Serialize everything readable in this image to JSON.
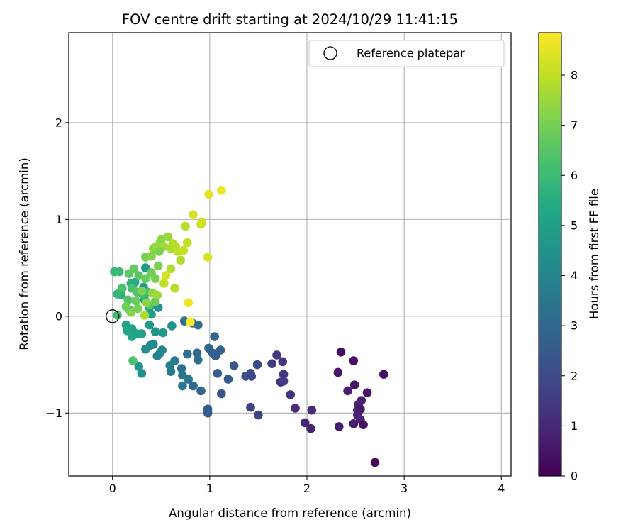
{
  "chart_data": {
    "type": "scatter",
    "title": "FOV centre drift starting at 2024/10/29 11:41:15",
    "xlabel": "Angular distance from reference (arcmin)",
    "ylabel": "Rotation from reference (arcmin)",
    "xlim": [
      -0.45,
      4.1
    ],
    "ylim": [
      -1.65,
      2.93
    ],
    "xticks": [
      0,
      1,
      2,
      3,
      4
    ],
    "yticks": [
      -1,
      0,
      1,
      2
    ],
    "grid": true,
    "legend": {
      "position": "top-right",
      "entries": [
        "Reference platepar"
      ]
    },
    "reference_point": {
      "x": 0,
      "y": 0,
      "label": "Reference platepar"
    },
    "colorbar": {
      "label": "Hours from first FF file",
      "colormap": "viridis",
      "range": [
        0,
        8.85
      ],
      "ticks": [
        0,
        1,
        2,
        3,
        4,
        5,
        6,
        7,
        8
      ]
    },
    "series": [
      {
        "points": [
          [
            2.7,
            -1.51,
            0.1
          ],
          [
            2.35,
            -0.37,
            0.3
          ],
          [
            2.48,
            -0.46,
            0.4
          ],
          [
            2.32,
            -0.58,
            0.5
          ],
          [
            2.79,
            -0.6,
            0.3
          ],
          [
            2.49,
            -0.71,
            0.6
          ],
          [
            2.42,
            -0.77,
            0.7
          ],
          [
            2.62,
            -0.79,
            0.5
          ],
          [
            2.56,
            -0.87,
            0.8
          ],
          [
            2.53,
            -0.91,
            0.9
          ],
          [
            2.52,
            -0.97,
            1.0
          ],
          [
            2.55,
            -0.96,
            0.6
          ],
          [
            2.52,
            -1.02,
            0.8
          ],
          [
            2.55,
            -1.07,
            0.9
          ],
          [
            2.33,
            -1.14,
            0.6
          ],
          [
            2.48,
            -1.11,
            0.7
          ],
          [
            2.58,
            -1.12,
            0.4
          ],
          [
            2.05,
            -0.97,
            1.1
          ],
          [
            1.98,
            -1.1,
            1.0
          ],
          [
            2.04,
            -1.16,
            0.9
          ],
          [
            1.69,
            -0.4,
            1.5
          ],
          [
            1.64,
            -0.49,
            1.6
          ],
          [
            1.75,
            -0.47,
            1.3
          ],
          [
            1.76,
            -0.6,
            1.4
          ],
          [
            1.73,
            -0.68,
            1.2
          ],
          [
            1.76,
            -0.67,
            1.5
          ],
          [
            1.83,
            -0.81,
            1.3
          ],
          [
            1.88,
            -0.95,
            1.2
          ],
          [
            1.49,
            -0.5,
            2.0
          ],
          [
            1.42,
            -0.59,
            2.1
          ],
          [
            1.37,
            -0.62,
            2.2
          ],
          [
            1.43,
            -0.62,
            1.9
          ],
          [
            1.42,
            -0.94,
            1.7
          ],
          [
            1.5,
            -1.02,
            1.8
          ],
          [
            1.25,
            -0.51,
            2.4
          ],
          [
            1.19,
            -0.65,
            2.5
          ],
          [
            1.05,
            -0.21,
            2.9
          ],
          [
            0.99,
            -0.33,
            2.9
          ],
          [
            1.03,
            -0.38,
            2.7
          ],
          [
            1.06,
            -0.41,
            2.6
          ],
          [
            1.11,
            -0.35,
            2.8
          ],
          [
            1.08,
            -0.59,
            2.6
          ],
          [
            1.12,
            -0.8,
            2.3
          ],
          [
            0.98,
            -0.96,
            2.5
          ],
          [
            0.98,
            -1.0,
            2.6
          ],
          [
            0.88,
            -0.09,
            3.2
          ],
          [
            0.82,
            -0.07,
            3.1
          ],
          [
            0.74,
            -0.05,
            3.3
          ],
          [
            0.87,
            -0.38,
            3.0
          ],
          [
            0.88,
            -0.45,
            3.1
          ],
          [
            0.77,
            -0.39,
            3.2
          ],
          [
            0.91,
            -0.77,
            2.9
          ],
          [
            0.83,
            -0.72,
            3.0
          ],
          [
            0.78,
            -0.65,
            3.4
          ],
          [
            0.72,
            -0.61,
            3.5
          ],
          [
            0.71,
            -0.54,
            3.3
          ],
          [
            0.72,
            -0.72,
            3.6
          ],
          [
            0.64,
            -0.46,
            3.7
          ],
          [
            0.59,
            -0.51,
            3.8
          ],
          [
            0.6,
            -0.57,
            3.6
          ],
          [
            0.51,
            -0.35,
            4.0
          ],
          [
            0.49,
            -0.38,
            4.1
          ],
          [
            0.46,
            -0.41,
            3.9
          ],
          [
            0.42,
            -0.29,
            4.2
          ],
          [
            0.39,
            -0.3,
            4.1
          ],
          [
            0.34,
            -0.34,
            4.3
          ],
          [
            0.3,
            -0.59,
            4.4
          ],
          [
            0.27,
            -0.52,
            4.5
          ],
          [
            0.61,
            -0.1,
            4.5
          ],
          [
            0.52,
            -0.17,
            4.7
          ],
          [
            0.44,
            -0.16,
            4.6
          ],
          [
            0.38,
            -0.09,
            4.8
          ],
          [
            0.4,
            0.02,
            4.9
          ],
          [
            0.47,
            0.09,
            4.6
          ],
          [
            0.38,
            0.09,
            5.0
          ],
          [
            0.33,
            0.17,
            4.9
          ],
          [
            0.32,
            0.3,
            4.7
          ],
          [
            0.34,
            0.5,
            4.8
          ],
          [
            0.3,
            -0.18,
            4.9
          ],
          [
            0.2,
            -0.13,
            5.0
          ],
          [
            0.15,
            -0.15,
            5.2
          ],
          [
            0.2,
            -0.21,
            5.3
          ],
          [
            0.14,
            -0.09,
            5.2
          ],
          [
            0.25,
            -0.18,
            5.1
          ],
          [
            0.19,
            0.34,
            5.5
          ],
          [
            0.23,
            0.35,
            5.4
          ],
          [
            0.09,
            0.22,
            5.6
          ],
          [
            0.05,
            0.23,
            5.8
          ],
          [
            0.02,
            0.46,
            5.9
          ],
          [
            0.07,
            0.46,
            6.0
          ],
          [
            0.05,
            0.01,
            6.1
          ],
          [
            0.18,
            0.06,
            6.2
          ],
          [
            0.1,
            0.29,
            6.3
          ],
          [
            0.16,
            0.17,
            6.4
          ],
          [
            0.2,
            0.29,
            6.2
          ],
          [
            0.25,
            0.25,
            6.4
          ],
          [
            0.31,
            0.23,
            6.0
          ],
          [
            0.36,
            0.25,
            6.1
          ],
          [
            0.21,
            -0.46,
            6.3
          ],
          [
            0.17,
            0.44,
            6.6
          ],
          [
            0.22,
            0.49,
            6.7
          ],
          [
            0.27,
            0.42,
            6.5
          ],
          [
            0.34,
            0.39,
            6.8
          ],
          [
            0.4,
            0.45,
            6.9
          ],
          [
            0.44,
            0.39,
            7.0
          ],
          [
            0.47,
            0.52,
            7.1
          ],
          [
            0.38,
            0.12,
            6.6
          ],
          [
            0.44,
            0.15,
            6.8
          ],
          [
            0.34,
            0.61,
            7.0
          ],
          [
            0.4,
            0.62,
            7.2
          ],
          [
            0.42,
            0.7,
            7.3
          ],
          [
            0.45,
            0.72,
            7.5
          ],
          [
            0.49,
            0.76,
            7.4
          ],
          [
            0.53,
            0.72,
            7.6
          ],
          [
            0.48,
            0.67,
            7.1
          ],
          [
            0.5,
            0.79,
            7.3
          ],
          [
            0.57,
            0.82,
            7.5
          ],
          [
            0.6,
            0.7,
            7.7
          ],
          [
            0.62,
            0.75,
            7.8
          ],
          [
            0.65,
            0.72,
            7.9
          ],
          [
            0.67,
            0.67,
            8.0
          ],
          [
            0.7,
            0.58,
            7.8
          ],
          [
            0.73,
            0.68,
            8.1
          ],
          [
            0.77,
            0.76,
            8.0
          ],
          [
            0.75,
            0.93,
            7.9
          ],
          [
            0.91,
            0.95,
            8.1
          ],
          [
            0.92,
            0.97,
            8.2
          ],
          [
            0.83,
            1.05,
            8.3
          ],
          [
            0.98,
            0.61,
            8.3
          ],
          [
            0.99,
            1.26,
            8.5
          ],
          [
            1.12,
            1.3,
            8.6
          ],
          [
            0.6,
            0.49,
            7.8
          ],
          [
            0.53,
            0.34,
            8.0
          ],
          [
            0.55,
            0.42,
            8.3
          ],
          [
            0.64,
            0.29,
            7.9
          ],
          [
            0.78,
            0.14,
            8.6
          ],
          [
            0.8,
            -0.06,
            8.8
          ],
          [
            0.33,
            0.01,
            7.7
          ],
          [
            0.19,
            0.04,
            7.2
          ],
          [
            0.14,
            0.1,
            6.9
          ],
          [
            0.26,
            0.08,
            7.0
          ],
          [
            0.24,
            0.16,
            6.8
          ],
          [
            0.3,
            0.26,
            7.1
          ],
          [
            0.35,
            0.14,
            7.3
          ],
          [
            0.41,
            0.24,
            7.4
          ],
          [
            0.46,
            0.22,
            7.6
          ]
        ]
      }
    ]
  }
}
